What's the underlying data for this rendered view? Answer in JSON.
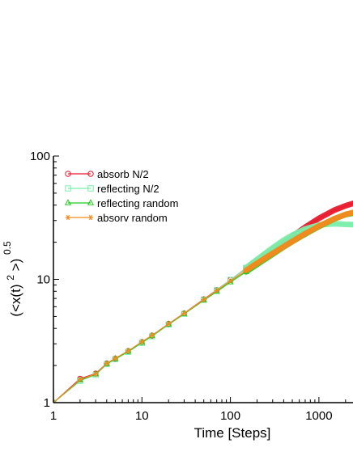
{
  "chart_data": {
    "type": "line",
    "title": "",
    "xlabel": "Time [Steps]",
    "ylabel_parts": {
      "open": "(<x(t)",
      "inner_sup": "2",
      "close": ">)",
      "outer_sup": "0.5"
    },
    "xscale": "log",
    "yscale": "log",
    "xlim": [
      1,
      2500
    ],
    "ylim": [
      1,
      100
    ],
    "xticks": [
      {
        "value": 1,
        "label": "1"
      },
      {
        "value": 10,
        "label": "10"
      },
      {
        "value": 100,
        "label": "100"
      },
      {
        "value": 1000,
        "label": "1000"
      }
    ],
    "yticks": [
      {
        "value": 1,
        "label": "1"
      },
      {
        "value": 10,
        "label": "10"
      },
      {
        "value": 100,
        "label": "100"
      }
    ],
    "grid": false,
    "legend": {
      "placement": "top-left"
    },
    "series": [
      {
        "name": "absorb N/2",
        "color": "#e8192c",
        "marker": "circle",
        "points": [
          [
            1,
            1
          ],
          [
            2,
            1.56
          ],
          [
            3,
            1.72
          ],
          [
            4,
            2.08
          ],
          [
            5,
            2.28
          ],
          [
            7,
            2.62
          ],
          [
            10,
            3.1
          ],
          [
            13,
            3.5
          ],
          [
            20,
            4.35
          ],
          [
            30,
            5.3
          ],
          [
            50,
            6.9
          ],
          [
            70,
            8.2
          ],
          [
            100,
            9.9
          ],
          [
            150,
            12.3
          ],
          [
            200,
            14.2
          ],
          [
            300,
            17.4
          ],
          [
            400,
            20.0
          ],
          [
            500,
            22.3
          ],
          [
            700,
            26.5
          ],
          [
            1000,
            31.2
          ],
          [
            1500,
            36.5
          ],
          [
            2000,
            39.5
          ],
          [
            2500,
            41.5
          ]
        ]
      },
      {
        "name": "reflecting N/2",
        "color": "#7aeeaa",
        "marker": "square",
        "points": [
          [
            1,
            1
          ],
          [
            2,
            1.5
          ],
          [
            3,
            1.68
          ],
          [
            4,
            2.05
          ],
          [
            5,
            2.25
          ],
          [
            7,
            2.58
          ],
          [
            10,
            3.05
          ],
          [
            13,
            3.45
          ],
          [
            20,
            4.3
          ],
          [
            30,
            5.25
          ],
          [
            50,
            6.85
          ],
          [
            70,
            8.15
          ],
          [
            100,
            9.9
          ],
          [
            150,
            12.4
          ],
          [
            200,
            14.5
          ],
          [
            300,
            18.0
          ],
          [
            400,
            20.8
          ],
          [
            500,
            22.8
          ],
          [
            700,
            25.6
          ],
          [
            1000,
            27.6
          ],
          [
            1500,
            28.2
          ],
          [
            2000,
            27.9
          ],
          [
            2500,
            27.8
          ]
        ]
      },
      {
        "name": "reflecting random",
        "color": "#22c81e",
        "marker": "triangle",
        "points": [
          [
            1,
            1
          ],
          [
            2,
            1.52
          ],
          [
            3,
            1.7
          ],
          [
            4,
            2.06
          ],
          [
            5,
            2.27
          ],
          [
            7,
            2.6
          ],
          [
            10,
            3.08
          ],
          [
            13,
            3.48
          ],
          [
            20,
            4.32
          ],
          [
            30,
            5.25
          ],
          [
            50,
            6.75
          ],
          [
            70,
            7.95
          ],
          [
            100,
            9.5
          ],
          [
            150,
            11.5
          ],
          [
            200,
            13.2
          ],
          [
            300,
            16.0
          ],
          [
            400,
            18.3
          ],
          [
            500,
            20.2
          ],
          [
            700,
            23.3
          ],
          [
            1000,
            26.8
          ],
          [
            1500,
            31.0
          ],
          [
            2000,
            33.5
          ],
          [
            2500,
            34.5
          ]
        ]
      },
      {
        "name": "absorv random",
        "color": "#f5891e",
        "marker": "star",
        "points": [
          [
            1,
            1
          ],
          [
            2,
            1.54
          ],
          [
            3,
            1.71
          ],
          [
            4,
            2.08
          ],
          [
            5,
            2.29
          ],
          [
            7,
            2.63
          ],
          [
            10,
            3.12
          ],
          [
            13,
            3.52
          ],
          [
            20,
            4.36
          ],
          [
            30,
            5.3
          ],
          [
            50,
            6.85
          ],
          [
            70,
            8.1
          ],
          [
            100,
            9.7
          ],
          [
            150,
            11.8
          ],
          [
            200,
            13.5
          ],
          [
            300,
            16.2
          ],
          [
            400,
            18.4
          ],
          [
            500,
            20.3
          ],
          [
            700,
            23.5
          ],
          [
            1000,
            27.0
          ],
          [
            1500,
            31.0
          ],
          [
            2000,
            33.6
          ],
          [
            2500,
            35.0
          ]
        ]
      }
    ]
  }
}
